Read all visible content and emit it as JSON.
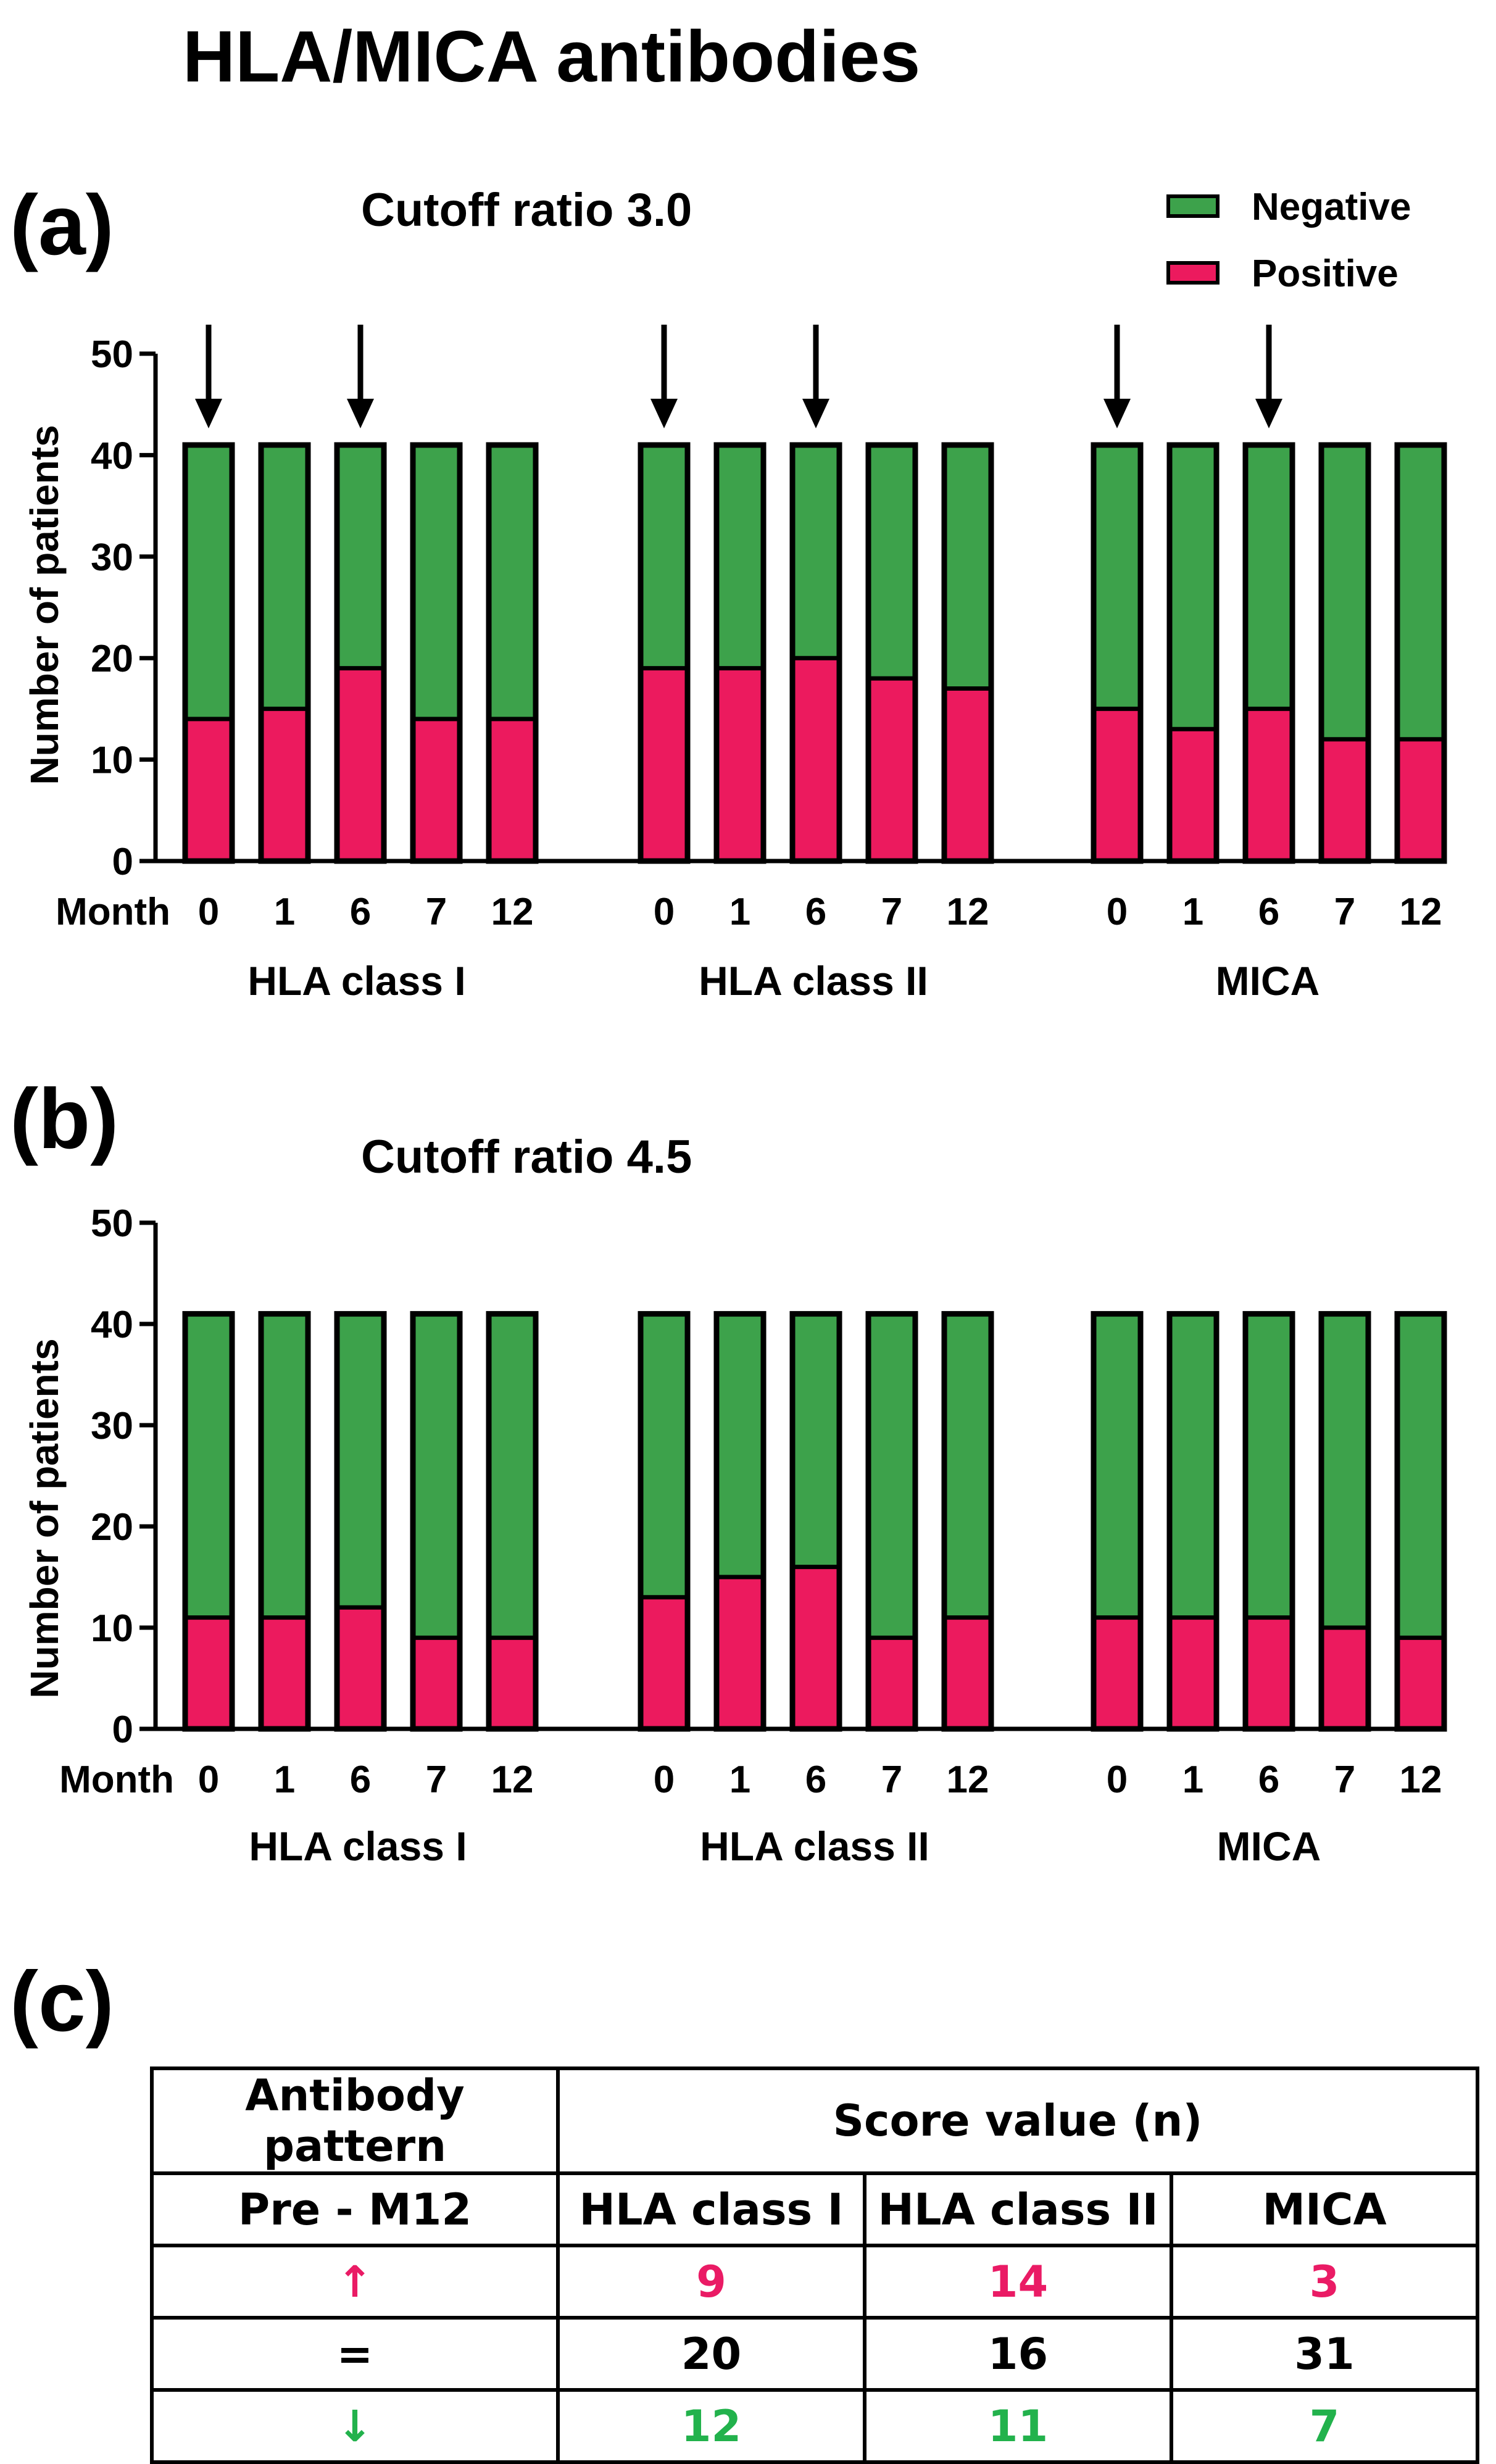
{
  "figure": {
    "title": "HLA/MICA antibodies",
    "panel_a_label": "(a)",
    "panel_b_label": "(b)",
    "panel_c_label": "(c)"
  },
  "colors": {
    "negative": "#3da24b",
    "positive": "#ec1a5e",
    "outline": "#000000"
  },
  "chart_data": [
    {
      "type": "bar",
      "stacked": true,
      "title": "Cutoff ratio 3.0",
      "xlabel": "Month",
      "ylabel": "Number of patients",
      "ylim": [
        0,
        50
      ],
      "yticks": [
        0,
        10,
        20,
        30,
        40,
        50
      ],
      "groups": [
        "HLA class I",
        "HLA class II",
        "MICA"
      ],
      "months": [
        "0",
        "1",
        "6",
        "7",
        "12"
      ],
      "total": 41,
      "legend": [
        "Negative",
        "Positive"
      ],
      "legend_position": "top-right",
      "arrows_at_months": [
        "0",
        "6"
      ],
      "series": [
        {
          "name": "Positive",
          "values": [
            [
              14,
              15,
              19,
              14,
              14
            ],
            [
              19,
              19,
              20,
              18,
              17
            ],
            [
              15,
              13,
              15,
              12,
              12
            ]
          ]
        },
        {
          "name": "Negative",
          "values": [
            [
              27,
              26,
              22,
              27,
              27
            ],
            [
              22,
              22,
              21,
              23,
              24
            ],
            [
              26,
              28,
              26,
              29,
              29
            ]
          ]
        }
      ]
    },
    {
      "type": "bar",
      "stacked": true,
      "title": "Cutoff ratio 4.5",
      "xlabel": "Month",
      "ylabel": "Number of patients",
      "ylim": [
        0,
        50
      ],
      "yticks": [
        0,
        10,
        20,
        30,
        40,
        50
      ],
      "groups": [
        "HLA class I",
        "HLA class II",
        "MICA"
      ],
      "months": [
        "0",
        "1",
        "6",
        "7",
        "12"
      ],
      "total": 41,
      "series": [
        {
          "name": "Positive",
          "values": [
            [
              11,
              11,
              12,
              9,
              9
            ],
            [
              13,
              15,
              16,
              9,
              11
            ],
            [
              11,
              11,
              11,
              10,
              9
            ]
          ]
        },
        {
          "name": "Negative",
          "values": [
            [
              30,
              30,
              29,
              32,
              32
            ],
            [
              28,
              26,
              25,
              32,
              30
            ],
            [
              30,
              30,
              30,
              31,
              32
            ]
          ]
        }
      ]
    },
    {
      "type": "table",
      "header_row_1": {
        "pattern": "Antibody pattern",
        "score": "Score value (n)"
      },
      "header_row_2": {
        "period": "Pre - M12",
        "hla1": "HLA class I",
        "hla2": "HLA class II",
        "mica": "MICA"
      },
      "rows": [
        {
          "symbol": "↑",
          "hla1": "9",
          "hla2": "14",
          "mica": "3"
        },
        {
          "symbol": "=",
          "hla1": "20",
          "hla2": "16",
          "mica": "31"
        },
        {
          "symbol": "↓",
          "hla1": "12",
          "hla2": "11",
          "mica": "7"
        }
      ]
    }
  ]
}
